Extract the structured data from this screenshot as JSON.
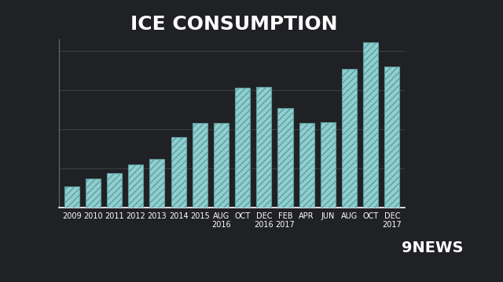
{
  "chart_data": {
    "type": "bar",
    "title": "ICE CONSUMPTION",
    "categories": [
      "2009",
      "2010",
      "2011",
      "2012",
      "2013",
      "2014",
      "2015",
      "AUG\n2016",
      "OCT",
      "DEC\n2016",
      "FEB\n2017",
      "APR",
      "JUN",
      "AUG",
      "OCT",
      "DEC\n2017"
    ],
    "values": [
      27,
      37,
      44,
      55,
      62,
      90,
      108,
      108,
      153,
      154,
      127,
      108,
      109,
      177,
      211,
      180
    ],
    "color": "#8fcfcf",
    "ylim": [
      0,
      215
    ],
    "yticks": [
      0,
      50,
      100,
      150,
      200
    ],
    "grid": true,
    "tick_labels": "x",
    "annotations": [
      "9NEWS"
    ]
  }
}
